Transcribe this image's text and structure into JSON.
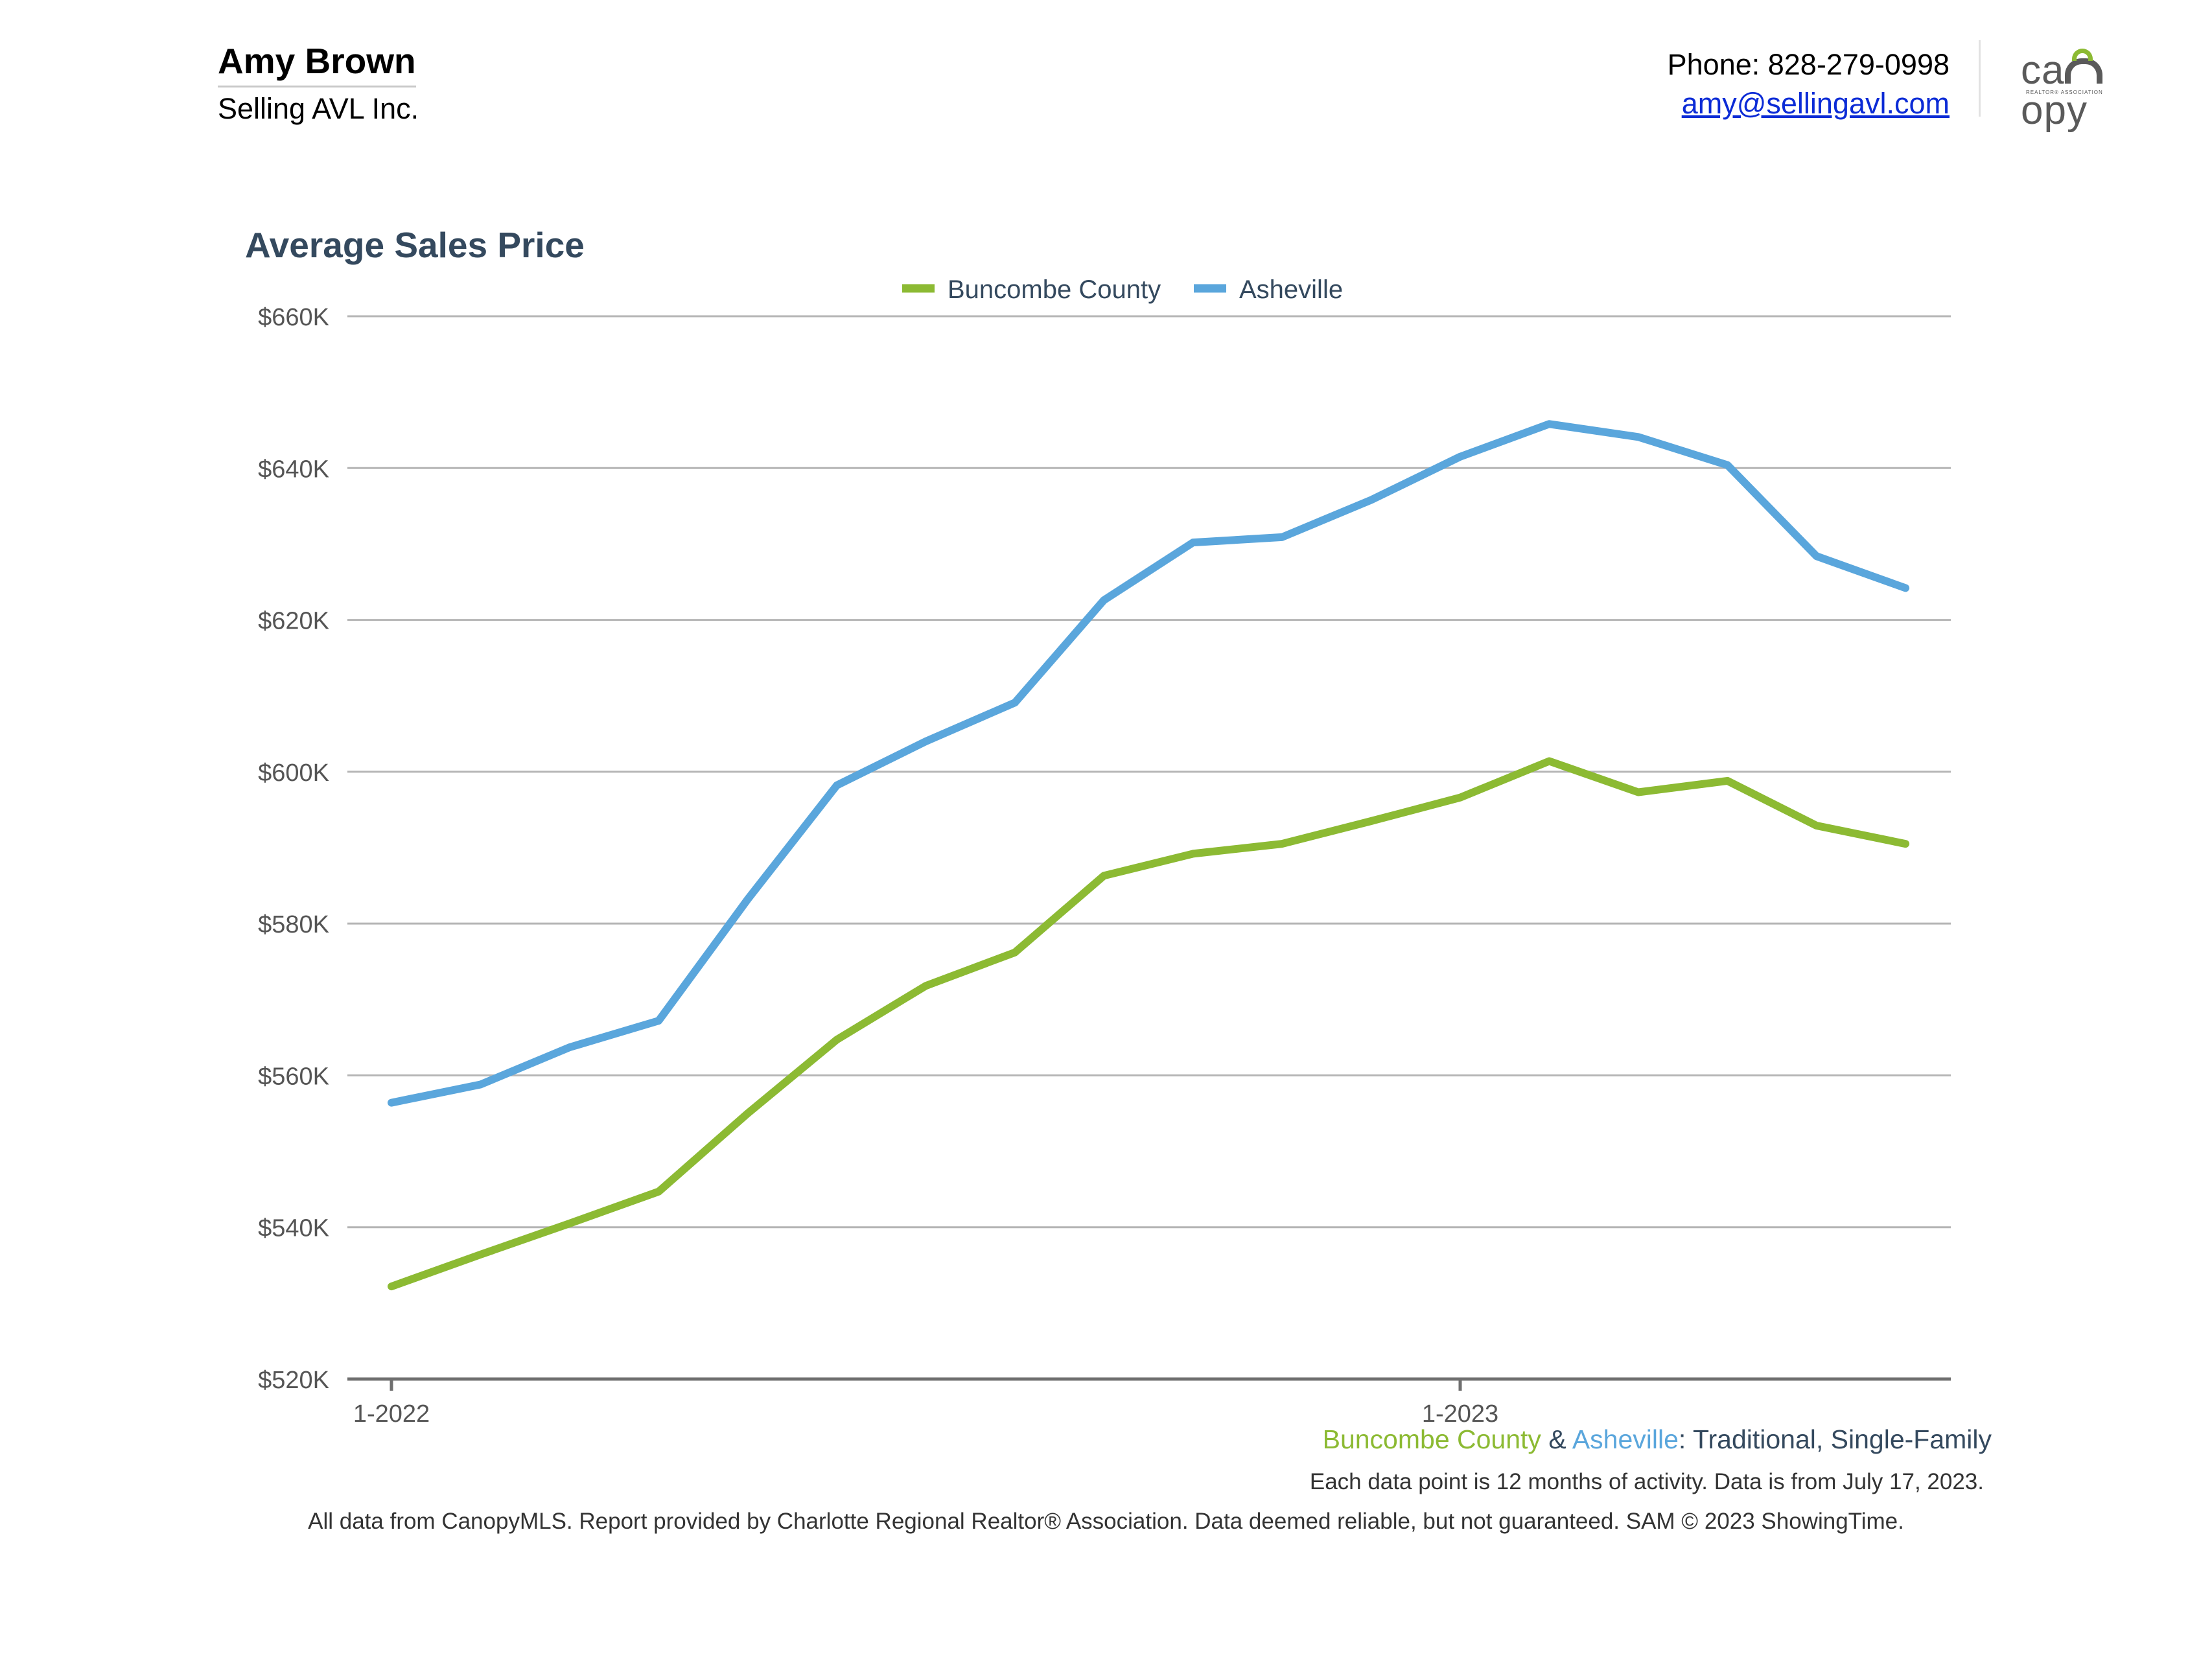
{
  "header": {
    "agent_name": "Amy Brown",
    "company": "Selling AVL Inc.",
    "phone": "Phone: 828-279-0998",
    "email": "amy@sellingavl.com",
    "logo_text": "canopy",
    "logo_tagline": "REALTOR® ASSOCIATION"
  },
  "colors": {
    "buncombe": "#8cba33",
    "asheville": "#5aa6dc",
    "title": "#34495e",
    "grid": "#b5b5b5",
    "axis": "#6f6f6f"
  },
  "chart_data": {
    "type": "line",
    "title": "Average Sales Price",
    "xlabel": "",
    "ylabel": "",
    "ylim": [
      520000,
      660000
    ],
    "yticks": [
      520000,
      540000,
      560000,
      580000,
      600000,
      620000,
      640000,
      660000
    ],
    "ytick_labels": [
      "$520K",
      "$540K",
      "$560K",
      "$580K",
      "$600K",
      "$620K",
      "$640K",
      "$660K"
    ],
    "xticks": [
      {
        "index": 0,
        "label": "1-2022"
      },
      {
        "index": 12,
        "label": "1-2023"
      }
    ],
    "x": [
      "1-2022",
      "2-2022",
      "3-2022",
      "4-2022",
      "5-2022",
      "6-2022",
      "7-2022",
      "8-2022",
      "9-2022",
      "10-2022",
      "11-2022",
      "12-2022",
      "1-2023",
      "2-2023",
      "3-2023",
      "4-2023",
      "5-2023",
      "6-2023"
    ],
    "grid": true,
    "legend_position": "top-center",
    "series": [
      {
        "name": "Buncombe County",
        "color": "#8cba33",
        "values": [
          532200,
          536400,
          540500,
          544700,
          555000,
          564700,
          571800,
          576200,
          586300,
          589200,
          590500,
          593500,
          596600,
          601400,
          597300,
          598800,
          592900,
          590500
        ]
      },
      {
        "name": "Asheville",
        "color": "#5aa6dc",
        "values": [
          556400,
          558800,
          563700,
          567200,
          583200,
          598200,
          604000,
          609100,
          622600,
          630200,
          630900,
          635800,
          641500,
          645800,
          644100,
          640400,
          628400,
          624200
        ]
      }
    ]
  },
  "subtitle": {
    "part1": "Buncombe County",
    "amp": "&",
    "part2": "Asheville",
    "part3": ": Traditional, Single-Family"
  },
  "note": "Each data point is 12 months of activity. Data is from July 17, 2023.",
  "footer": "All data from CanopyMLS. Report provided by Charlotte Regional Realtor® Association. Data deemed reliable, but not guaranteed. SAM © 2023 ShowingTime."
}
